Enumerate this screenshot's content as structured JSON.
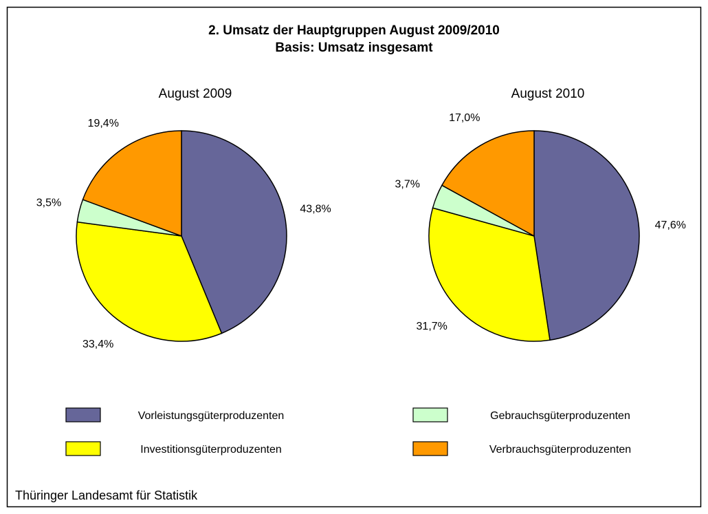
{
  "title": "2. Umsatz der Hauptgruppen August 2009/2010",
  "subtitle": "Basis: Umsatz insgesamt",
  "source": "Thüringer Landesamt für Statistik",
  "chart_data": [
    {
      "type": "pie",
      "title": "August 2009",
      "categories": [
        "Vorleistungsgüterproduzenten",
        "Investitionsgüterproduzenten",
        "Gebrauchsgüterproduzenten",
        "Verbrauchsgüterproduzenten"
      ],
      "values": [
        43.8,
        33.4,
        3.5,
        19.4
      ],
      "value_labels": [
        "43,8%",
        "33,4%",
        "3,5%",
        "19,4%"
      ],
      "colors": [
        "#666699",
        "#ffff00",
        "#ccffcc",
        "#ff9900"
      ]
    },
    {
      "type": "pie",
      "title": "August 2010",
      "categories": [
        "Vorleistungsgüterproduzenten",
        "Investitionsgüterproduzenten",
        "Gebrauchsgüterproduzenten",
        "Verbrauchsgüterproduzenten"
      ],
      "values": [
        47.6,
        31.7,
        3.7,
        17.0
      ],
      "value_labels": [
        "47,6%",
        "31,7%",
        "3,7%",
        "17,0%"
      ],
      "colors": [
        "#666699",
        "#ffff00",
        "#ccffcc",
        "#ff9900"
      ]
    }
  ]
}
